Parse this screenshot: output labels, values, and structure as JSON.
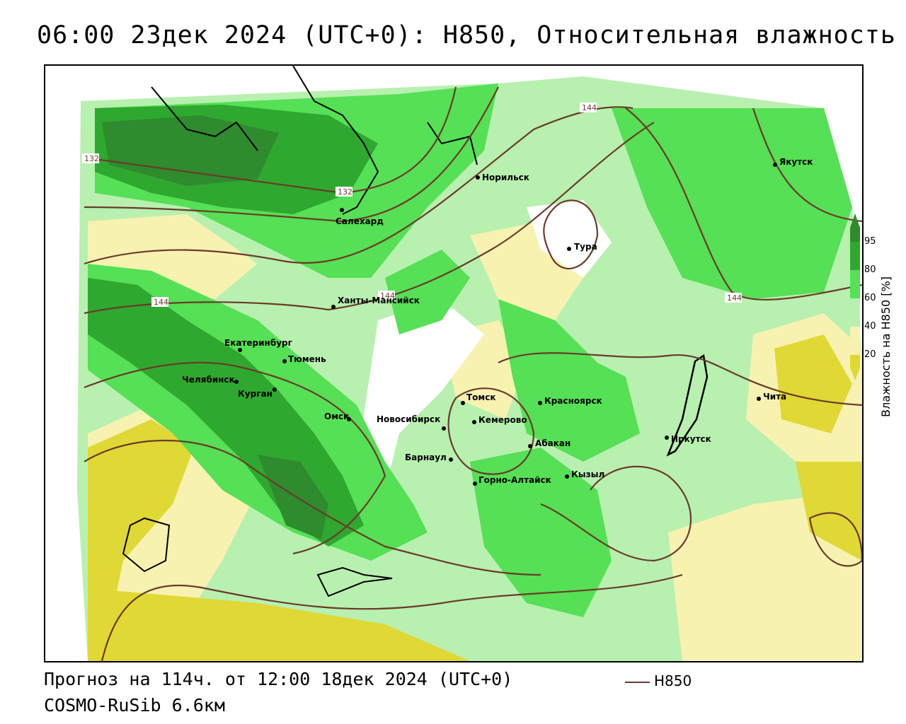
{
  "title": "06:00 23дек 2024 (UTC+0): H850, Относительная влажность",
  "footer": {
    "forecast": "Прогноз на 114ч. от 12:00 18дек 2024 (UTC+0)",
    "model": "COSMO-RuSib 6.6км"
  },
  "legend": {
    "contour_label": "H850",
    "contour_color": "#6b3a2a"
  },
  "colorbar": {
    "title": "Влажность на H850 [%]",
    "ticks": [
      "95",
      "80",
      "60",
      "40",
      "20"
    ],
    "colors": {
      "above95": "#2e8b2e",
      "c80_95": "#2fa82f",
      "c60_80": "#55e055",
      "c50_60": "#b8f0b0",
      "c40_50": "#ffffff",
      "c20_40": "#f7f2b0",
      "below20": "#e0d835"
    }
  },
  "contour_labels": [
    "132",
    "132",
    "144",
    "144",
    "144",
    "144"
  ],
  "cities": [
    {
      "name": "Норильск"
    },
    {
      "name": "Якутск"
    },
    {
      "name": "Салехард"
    },
    {
      "name": "Тура"
    },
    {
      "name": "Ханты-Мансийск"
    },
    {
      "name": "Екатеринбург"
    },
    {
      "name": "Тюмень"
    },
    {
      "name": "Челябинск"
    },
    {
      "name": "Курган"
    },
    {
      "name": "Омск"
    },
    {
      "name": "Новосибирск"
    },
    {
      "name": "Томск"
    },
    {
      "name": "Кемерово"
    },
    {
      "name": "Красноярск"
    },
    {
      "name": "Барнаул"
    },
    {
      "name": "Абакан"
    },
    {
      "name": "Кызыл"
    },
    {
      "name": "Горно-Алтайск"
    },
    {
      "name": "Иркутск"
    },
    {
      "name": "Чита"
    }
  ]
}
